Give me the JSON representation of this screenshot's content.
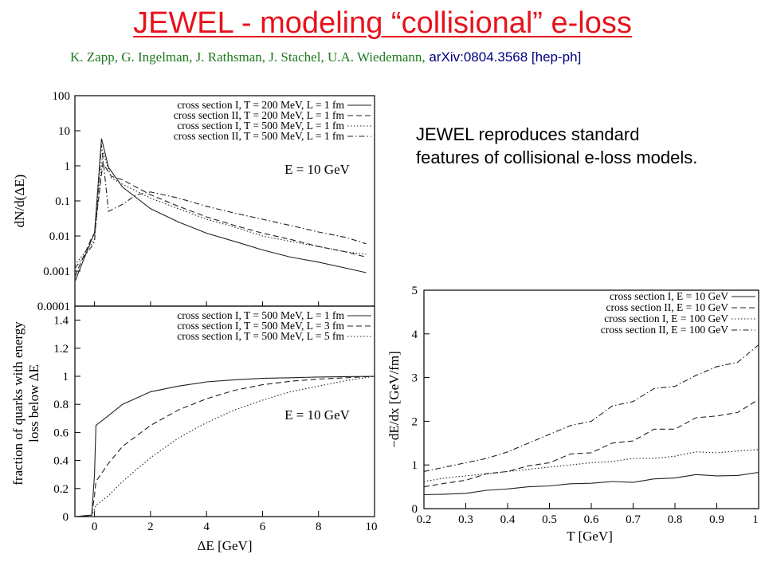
{
  "slide": {
    "title": "JEWEL - modeling “collisional” e-loss",
    "authors": "K. Zapp, G. Ingelman, J. Rathsman, J. Stachel, U.A. Wiedemann,",
    "reference": "arXiv:0804.3568 [hep-ph]",
    "description": "JEWEL reproduces standard features of collisional e-loss models."
  },
  "chart_data": [
    {
      "type": "line",
      "ylabel": "dN/d(ΔE)",
      "yscale": "log",
      "ylim": [
        0.0001,
        100
      ],
      "xlim": [
        -0.7,
        10
      ],
      "yticks": [
        "100",
        "10",
        "1",
        "0.1",
        "0.01",
        "0.001",
        "0.0001"
      ],
      "annotation": "E = 10 GeV",
      "legend_position": "top-right",
      "series": [
        {
          "name": "cross section I, T = 200 MeV, L = 1 fm",
          "style": "solid",
          "x": [
            -0.7,
            -0.1,
            0.0,
            0.25,
            0.5,
            1.0,
            2.0,
            3.0,
            4.0,
            5.0,
            6.0,
            7.0,
            8.0,
            9.0,
            9.7
          ],
          "y": [
            0.0005,
            0.008,
            0.012,
            6.0,
            0.9,
            0.25,
            0.06,
            0.025,
            0.012,
            0.007,
            0.004,
            0.0025,
            0.0018,
            0.0012,
            0.0009
          ]
        },
        {
          "name": "cross section II, T = 200 MeV, L = 1 fm",
          "style": "dashed",
          "x": [
            -0.7,
            -0.1,
            0.0,
            0.3,
            0.6,
            1.0,
            2.0,
            3.0,
            4.0,
            5.0,
            6.0,
            7.0,
            8.0,
            9.0,
            9.7
          ],
          "y": [
            0.0007,
            0.009,
            0.012,
            1.2,
            0.5,
            0.4,
            0.15,
            0.07,
            0.035,
            0.02,
            0.012,
            0.008,
            0.005,
            0.0035,
            0.0025
          ]
        },
        {
          "name": "cross section I, T = 500 MeV, L = 1 fm",
          "style": "dotted",
          "x": [
            -0.7,
            -0.1,
            0.0,
            0.3,
            0.6,
            1.0,
            2.0,
            3.0,
            4.0,
            5.0,
            6.0,
            7.0,
            8.0,
            9.0,
            9.7
          ],
          "y": [
            0.0015,
            0.006,
            0.008,
            2.5,
            0.45,
            0.3,
            0.12,
            0.06,
            0.03,
            0.018,
            0.01,
            0.007,
            0.005,
            0.0035,
            0.003
          ]
        },
        {
          "name": "cross section II, T = 500 MeV, L = 1 fm",
          "style": "dash-dot",
          "x": [
            -0.7,
            -0.1,
            0.0,
            0.25,
            0.5,
            1.0,
            1.5,
            2.0,
            3.0,
            4.0,
            5.0,
            6.0,
            7.0,
            8.0,
            9.0,
            9.7
          ],
          "y": [
            0.0012,
            0.005,
            0.007,
            4.0,
            0.05,
            0.08,
            0.15,
            0.18,
            0.12,
            0.07,
            0.045,
            0.03,
            0.02,
            0.013,
            0.009,
            0.006
          ]
        }
      ]
    },
    {
      "type": "line",
      "xlabel": "ΔE [GeV]",
      "ylabel": "fraction of quarks with energy loss below ΔE",
      "ylabel_lines": [
        "fraction of quarks with energy",
        "loss below  ΔE"
      ],
      "xlim": [
        -0.7,
        10
      ],
      "ylim": [
        0,
        1.5
      ],
      "xticks": [
        "0",
        "2",
        "4",
        "6",
        "8",
        "10"
      ],
      "yticks": [
        "0",
        "0.2",
        "0.4",
        "0.6",
        "0.8",
        "1",
        "1.2",
        "1.4"
      ],
      "annotation": "E = 10 GeV",
      "legend_position": "top-right",
      "series": [
        {
          "name": "cross section I, T = 500 MeV, L = 1 fm",
          "style": "solid",
          "x": [
            -0.7,
            -0.1,
            0.0,
            0.05,
            0.5,
            1.0,
            2.0,
            3.0,
            4.0,
            5.0,
            6.0,
            7.0,
            8.0,
            9.0,
            10.0
          ],
          "y": [
            0.0,
            0.01,
            0.3,
            0.65,
            0.72,
            0.8,
            0.89,
            0.93,
            0.96,
            0.975,
            0.985,
            0.99,
            0.995,
            0.998,
            1.0
          ]
        },
        {
          "name": "cross section I, T = 500 MeV, L = 3 fm",
          "style": "dashed",
          "x": [
            -0.7,
            -0.1,
            0.0,
            0.05,
            0.5,
            1.0,
            2.0,
            3.0,
            4.0,
            5.0,
            6.0,
            7.0,
            8.0,
            9.0,
            10.0
          ],
          "y": [
            0.0,
            0.01,
            0.15,
            0.25,
            0.38,
            0.5,
            0.65,
            0.76,
            0.84,
            0.9,
            0.94,
            0.965,
            0.98,
            0.99,
            1.0
          ]
        },
        {
          "name": "cross section I, T = 500 MeV, L = 5 fm",
          "style": "dotted",
          "x": [
            -0.7,
            -0.1,
            0.0,
            0.05,
            0.5,
            1.0,
            2.0,
            3.0,
            4.0,
            5.0,
            6.0,
            7.0,
            8.0,
            9.0,
            10.0
          ],
          "y": [
            0.0,
            0.01,
            0.05,
            0.08,
            0.15,
            0.25,
            0.42,
            0.56,
            0.67,
            0.76,
            0.83,
            0.89,
            0.93,
            0.97,
            1.0
          ]
        }
      ]
    },
    {
      "type": "line",
      "xlabel": "T [GeV]",
      "ylabel": "−dE/dx [GeV/fm]",
      "xlim": [
        0.2,
        1.0
      ],
      "ylim": [
        0,
        5
      ],
      "xticks": [
        "0.2",
        "0.3",
        "0.4",
        "0.5",
        "0.6",
        "0.7",
        "0.8",
        "0.9",
        "1"
      ],
      "yticks": [
        "0",
        "1",
        "2",
        "3",
        "4",
        "5"
      ],
      "legend_position": "top-right",
      "series": [
        {
          "name": "cross section I, E = 10 GeV",
          "style": "solid",
          "x": [
            0.2,
            0.25,
            0.3,
            0.35,
            0.4,
            0.45,
            0.5,
            0.55,
            0.6,
            0.65,
            0.7,
            0.75,
            0.8,
            0.85,
            0.9,
            0.95,
            1.0
          ],
          "y": [
            0.32,
            0.33,
            0.35,
            0.42,
            0.45,
            0.5,
            0.52,
            0.57,
            0.58,
            0.62,
            0.6,
            0.68,
            0.7,
            0.78,
            0.75,
            0.76,
            0.83
          ]
        },
        {
          "name": "cross section II, E = 10 GeV",
          "style": "dashed",
          "x": [
            0.2,
            0.25,
            0.3,
            0.35,
            0.4,
            0.45,
            0.5,
            0.55,
            0.6,
            0.65,
            0.7,
            0.75,
            0.8,
            0.85,
            0.9,
            0.95,
            1.0
          ],
          "y": [
            0.5,
            0.58,
            0.65,
            0.8,
            0.85,
            0.98,
            1.05,
            1.25,
            1.28,
            1.5,
            1.55,
            1.82,
            1.82,
            2.08,
            2.12,
            2.2,
            2.5
          ]
        },
        {
          "name": "cross section I, E = 100 GeV",
          "style": "dotted",
          "x": [
            0.2,
            0.25,
            0.3,
            0.35,
            0.4,
            0.45,
            0.5,
            0.55,
            0.6,
            0.65,
            0.7,
            0.75,
            0.8,
            0.85,
            0.9,
            0.95,
            1.0
          ],
          "y": [
            0.62,
            0.7,
            0.75,
            0.8,
            0.85,
            0.9,
            0.95,
            1.0,
            1.05,
            1.08,
            1.15,
            1.15,
            1.2,
            1.3,
            1.28,
            1.32,
            1.35
          ]
        },
        {
          "name": "cross section II, E = 100 GeV",
          "style": "dash-dot",
          "x": [
            0.2,
            0.25,
            0.3,
            0.35,
            0.4,
            0.45,
            0.5,
            0.55,
            0.6,
            0.65,
            0.7,
            0.75,
            0.8,
            0.85,
            0.9,
            0.95,
            1.0
          ],
          "y": [
            0.85,
            0.95,
            1.05,
            1.15,
            1.3,
            1.5,
            1.7,
            1.9,
            2.0,
            2.35,
            2.45,
            2.75,
            2.8,
            3.05,
            3.25,
            3.35,
            3.75
          ]
        }
      ]
    }
  ]
}
